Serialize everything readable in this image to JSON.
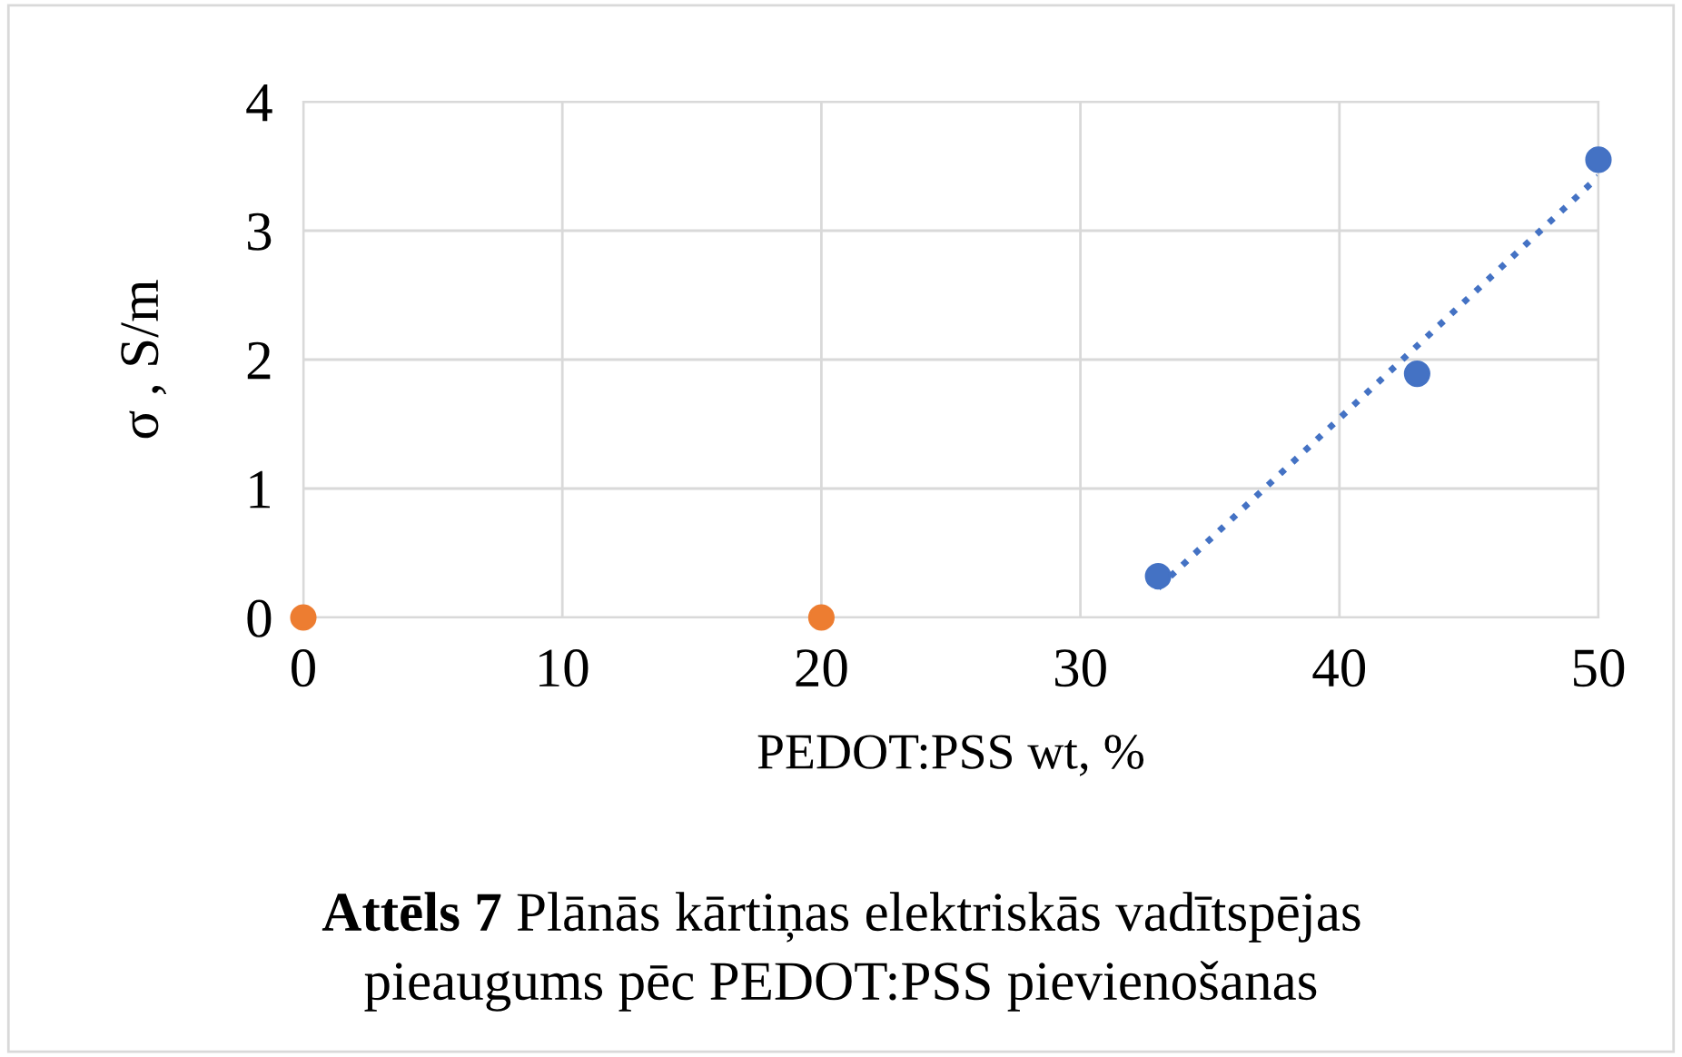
{
  "chart_data": {
    "type": "scatter",
    "xlabel": "PEDOT:PSS wt, %",
    "ylabel": "σ , S/m",
    "series": [
      {
        "type": "scatter",
        "color": "#4472c4",
        "x": [
          33,
          43,
          50
        ],
        "values": [
          0.32,
          1.89,
          3.55
        ],
        "marker": "circle"
      },
      {
        "color": "#ed7d31",
        "x": [
          0,
          20
        ],
        "values": [
          0,
          0
        ],
        "marker": "circle"
      },
      {
        "type": "line",
        "color": "#4472c4",
        "x": [
          33,
          50
        ],
        "values": [
          0.23,
          3.42
        ],
        "line_style": "dotted"
      }
    ],
    "xlim": [
      0,
      50
    ],
    "xticks": [
      0,
      10,
      20,
      30,
      40,
      50
    ],
    "ylim": [
      0,
      4
    ],
    "yticks": [
      0,
      1,
      2,
      3,
      4
    ],
    "grid": true,
    "legend": false,
    "annotations": [
      "Attēls 7",
      "Plānās kārtiņas elektriskās vadītspējas\npieaugums pēc PEDOT:PSS pievienošanas"
    ]
  }
}
